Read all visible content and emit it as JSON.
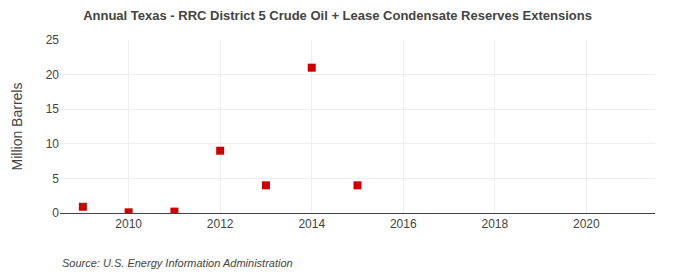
{
  "chart_data": {
    "type": "scatter",
    "title": "Annual Texas - RRC District 5 Crude Oil + Lease Condensate Reserves Extensions",
    "y_label": "Million Barrels",
    "annotations": [
      "Source: U.S. Energy Information Administration"
    ],
    "x": [
      2009,
      2010,
      2011,
      2012,
      2013,
      2014,
      2015
    ],
    "values": [
      0.9,
      0.1,
      0.2,
      9.0,
      4.0,
      21.0,
      4.0
    ],
    "color": "#cc0000",
    "marker": "square",
    "xlim": [
      2008.5,
      2021.5
    ],
    "xticks": [
      2010,
      2012,
      2014,
      2016,
      2018,
      2020
    ],
    "ylim": [
      0,
      25
    ],
    "yticks": [
      0,
      5,
      10,
      15,
      20,
      25
    ],
    "grid": true
  }
}
